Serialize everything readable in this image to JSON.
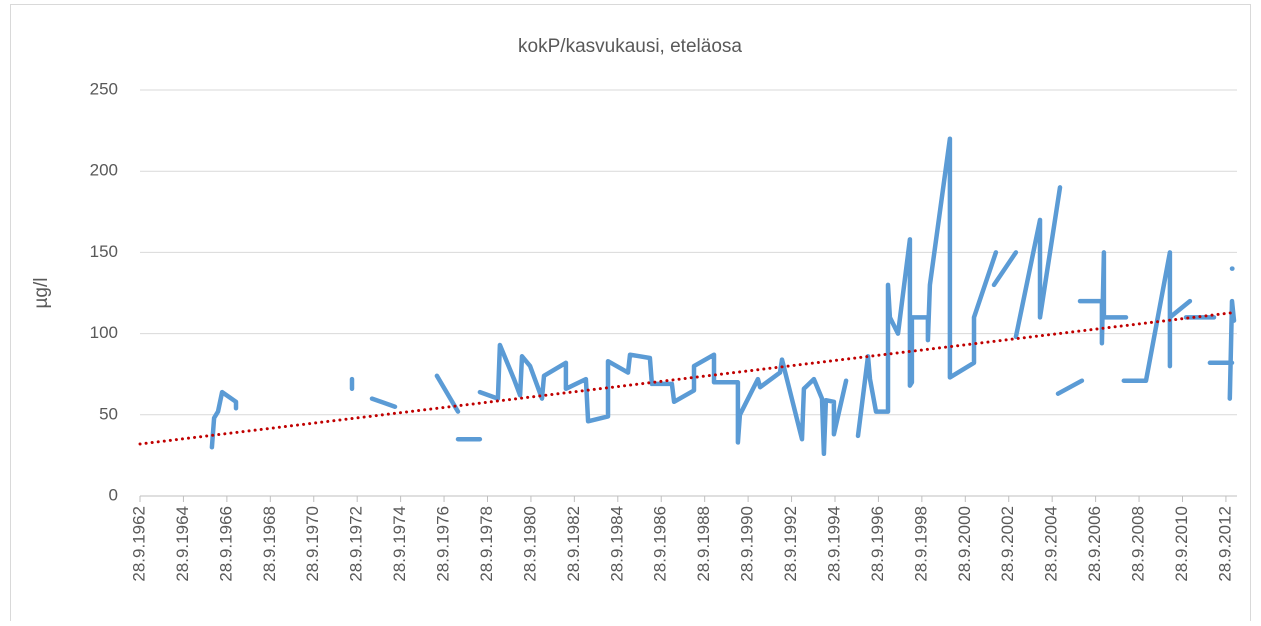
{
  "chart_data": {
    "type": "line",
    "title": "kokP/kasvukausi, eteläosa",
    "y_label": "µg/l",
    "xlim": [
      1962.74,
      2013.25
    ],
    "ylim": [
      0,
      250
    ],
    "yticks": [
      0,
      50,
      100,
      150,
      200,
      250
    ],
    "xticks": [
      {
        "value": 1962.74,
        "label": "28.9.1962"
      },
      {
        "value": 1964.74,
        "label": "28.9.1964"
      },
      {
        "value": 1966.74,
        "label": "28.9.1966"
      },
      {
        "value": 1968.74,
        "label": "28.9.1968"
      },
      {
        "value": 1970.74,
        "label": "28.9.1970"
      },
      {
        "value": 1972.74,
        "label": "28.9.1972"
      },
      {
        "value": 1974.74,
        "label": "28.9.1974"
      },
      {
        "value": 1976.74,
        "label": "28.9.1976"
      },
      {
        "value": 1978.74,
        "label": "28.9.1978"
      },
      {
        "value": 1980.74,
        "label": "28.9.1980"
      },
      {
        "value": 1982.74,
        "label": "28.9.1982"
      },
      {
        "value": 1984.74,
        "label": "28.9.1984"
      },
      {
        "value": 1986.74,
        "label": "28.9.1986"
      },
      {
        "value": 1988.74,
        "label": "28.9.1988"
      },
      {
        "value": 1990.74,
        "label": "28.9.1990"
      },
      {
        "value": 1992.74,
        "label": "28.9.1992"
      },
      {
        "value": 1994.74,
        "label": "28.9.1994"
      },
      {
        "value": 1996.74,
        "label": "28.9.1996"
      },
      {
        "value": 1998.74,
        "label": "28.9.1998"
      },
      {
        "value": 2000.74,
        "label": "28.9.2000"
      },
      {
        "value": 2002.74,
        "label": "28.9.2002"
      },
      {
        "value": 2004.74,
        "label": "28.9.2004"
      },
      {
        "value": 2006.74,
        "label": "28.9.2006"
      },
      {
        "value": 2008.74,
        "label": "28.9.2008"
      },
      {
        "value": 2010.74,
        "label": "28.9.2010"
      },
      {
        "value": 2012.74,
        "label": "28.9.2012"
      }
    ],
    "grid": true,
    "series": [
      {
        "color": "#5b9bd5",
        "dash": "solid",
        "x": [
          1966.05,
          1966.15,
          1966.33,
          1966.52,
          1967.16,
          1967.16,
          null,
          1972.5,
          1972.5,
          null,
          1973.42,
          1974.48,
          null,
          1976.41,
          1977.38,
          null,
          1977.38,
          1978.39,
          null,
          1978.39,
          1979.22,
          1979.31,
          1979.96,
          1980.24,
          1980.33,
          1980.7,
          1981.25,
          1981.34,
          1982.35,
          1982.35,
          1983.27,
          1983.37,
          1984.29,
          1984.29,
          1985.21,
          1985.3,
          1986.22,
          1986.31,
          1987.23,
          1987.33,
          1988.25,
          1988.25,
          1989.17,
          1989.17,
          1990.27,
          1990.27,
          1990.36,
          1991.19,
          1991.29,
          1992.21,
          1992.3,
          1993.22,
          1993.31,
          1993.77,
          1994.14,
          1994.23,
          1994.32,
          1994.69,
          1994.69,
          1995.25,
          null,
          1995.8,
          1996.26,
          1996.35,
          1996.63,
          1997.18,
          1997.18,
          1997.27,
          1997.64,
          1998.19,
          1998.19,
          1998.28,
          1998.28,
          1999.02,
          1999.02,
          1999.11,
          2000.03,
          2000.03,
          2001.14,
          2001.14,
          2002.15,
          null,
          2002.06,
          2003.07,
          null,
          2003.07,
          2004.18,
          2004.18,
          2005.1,
          null,
          2005.01,
          2006.11,
          null,
          2006.02,
          2007.03,
          2007.03,
          2007.12,
          2007.12,
          2008.14,
          null,
          2008.04,
          2009.06,
          2010.16,
          2010.16,
          2010.16,
          2011.08,
          null,
          2010.9,
          2012.19,
          null,
          2012.0,
          2013.02,
          null,
          2012.92,
          2013.02,
          2013.11,
          null,
          2013.02,
          2013.04
        ],
        "values": [
          30,
          48,
          52,
          64,
          58,
          54,
          null,
          72,
          66,
          null,
          60,
          55,
          null,
          74,
          52,
          null,
          35,
          35,
          null,
          64,
          60,
          93,
          72,
          62,
          86,
          80,
          60,
          74,
          82,
          66,
          72,
          46,
          49,
          83,
          76,
          87,
          85,
          69,
          69,
          58,
          65,
          80,
          87,
          70,
          70,
          33,
          50,
          72,
          67,
          76,
          84,
          35,
          66,
          72,
          60,
          26,
          59,
          58,
          38,
          71,
          null,
          37,
          86,
          72,
          52,
          52,
          130,
          110,
          100,
          158,
          68,
          70,
          110,
          110,
          96,
          130,
          220,
          73,
          82,
          110,
          150,
          null,
          130,
          150,
          null,
          98,
          170,
          110,
          190,
          null,
          63,
          71,
          null,
          120,
          120,
          94,
          150,
          110,
          110,
          null,
          71,
          71,
          150,
          80,
          110,
          120,
          null,
          110,
          110,
          null,
          82,
          82,
          null,
          60,
          120,
          108,
          null,
          140,
          140
        ]
      },
      {
        "color": "#c00000",
        "dash": "dotted",
        "x": [
          1962.74,
          2013.11
        ],
        "values": [
          32,
          113
        ]
      }
    ]
  }
}
